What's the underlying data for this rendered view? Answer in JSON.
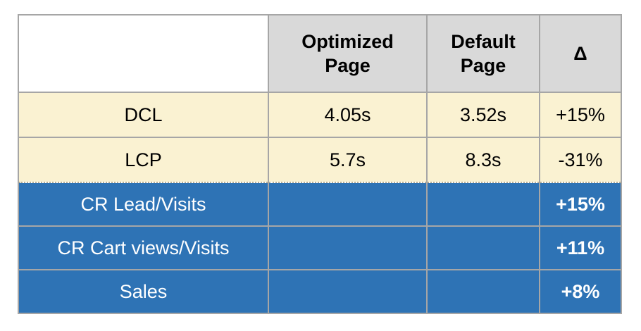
{
  "colors": {
    "header_bg": "#d9d9d9",
    "perf_bg": "#faf2d2",
    "business_bg": "#2e73b5",
    "grid": "#a6a6a6",
    "seam": "#b3ab91",
    "text_dark": "#000000",
    "text_light": "#ffffff"
  },
  "table": {
    "columns": [
      {
        "label": ""
      },
      {
        "label": "Optimized\nPage"
      },
      {
        "label": "Default\nPage"
      },
      {
        "label": "Δ"
      }
    ],
    "rows": [
      {
        "label": "DCL",
        "optimized": "4.05s",
        "default": "3.52s",
        "delta": "+15%",
        "section": "performance"
      },
      {
        "label": "LCP",
        "optimized": "5.7s",
        "default": "8.3s",
        "delta": "-31%",
        "section": "performance"
      },
      {
        "label": "CR Lead/Visits",
        "optimized": "",
        "default": "",
        "delta": "+15%",
        "section": "business"
      },
      {
        "label": "CR Cart views/Visits",
        "optimized": "",
        "default": "",
        "delta": "+11%",
        "section": "business"
      },
      {
        "label": "Sales",
        "optimized": "",
        "default": "",
        "delta": "+8%",
        "section": "business"
      }
    ]
  }
}
